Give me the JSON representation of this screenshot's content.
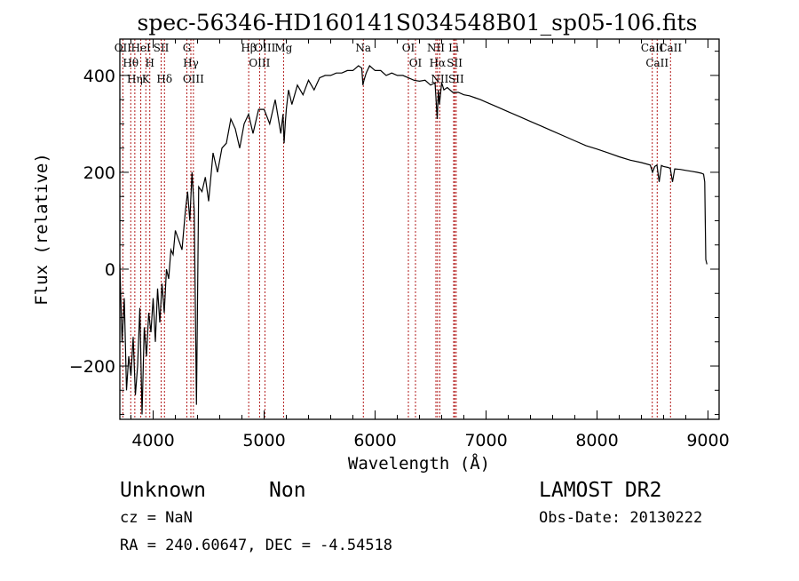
{
  "chart_data": {
    "type": "line",
    "title": "spec-56346-HD160141S034548B01_sp05-106.fits",
    "xlabel": "Wavelength (Å)",
    "ylabel": "Flux (relative)",
    "xlim": [
      3700,
      9100
    ],
    "ylim": [
      -310,
      475
    ],
    "xticks": [
      4000,
      5000,
      6000,
      7000,
      8000,
      9000
    ],
    "yticks": [
      -200,
      0,
      200,
      400
    ],
    "series": [
      {
        "x": [
          3700,
          3720,
          3740,
          3760,
          3780,
          3800,
          3820,
          3840,
          3860,
          3880,
          3900,
          3920,
          3940,
          3960,
          3980,
          4000,
          4020,
          4040,
          4060,
          4080,
          4100,
          4120,
          4140,
          4160,
          4180,
          4200,
          4230,
          4260,
          4290,
          4310,
          4330,
          4350,
          4370,
          4390,
          4410,
          4440,
          4470,
          4500,
          4540,
          4580,
          4620,
          4660,
          4700,
          4740,
          4780,
          4820,
          4860,
          4900,
          4950,
          5000,
          5050,
          5100,
          5150,
          5170,
          5180,
          5190,
          5200,
          5220,
          5250,
          5300,
          5350,
          5400,
          5450,
          5500,
          5550,
          5600,
          5650,
          5700,
          5750,
          5800,
          5850,
          5880,
          5890,
          5900,
          5920,
          5950,
          6000,
          6050,
          6100,
          6150,
          6200,
          6250,
          6300,
          6350,
          6400,
          6450,
          6500,
          6540,
          6560,
          6570,
          6580,
          6600,
          6620,
          6650,
          6700,
          6750,
          6800,
          6850,
          6900,
          6950,
          7000,
          7100,
          7200,
          7300,
          7400,
          7500,
          7600,
          7700,
          7800,
          7900,
          8000,
          8100,
          8200,
          8300,
          8400,
          8480,
          8500,
          8520,
          8540,
          8560,
          8580,
          8600,
          8640,
          8660,
          8680,
          8700,
          8750,
          8800,
          8850,
          8900,
          8940,
          8960,
          8970,
          8975,
          8980,
          8990
        ],
        "y": [
          10,
          -150,
          -60,
          -250,
          -180,
          -220,
          -140,
          -260,
          -200,
          -80,
          -300,
          -120,
          -180,
          -90,
          -130,
          -60,
          -150,
          -40,
          -110,
          -30,
          -90,
          0,
          -20,
          40,
          30,
          80,
          60,
          40,
          120,
          160,
          100,
          200,
          120,
          -280,
          170,
          160,
          190,
          140,
          240,
          200,
          250,
          260,
          310,
          290,
          250,
          300,
          320,
          280,
          330,
          330,
          300,
          350,
          280,
          320,
          260,
          300,
          330,
          370,
          340,
          380,
          360,
          390,
          370,
          395,
          400,
          400,
          405,
          405,
          410,
          410,
          420,
          415,
          380,
          390,
          405,
          420,
          410,
          410,
          400,
          405,
          400,
          400,
          395,
          390,
          388,
          390,
          380,
          385,
          310,
          370,
          340,
          385,
          370,
          375,
          365,
          365,
          360,
          358,
          354,
          350,
          345,
          335,
          325,
          315,
          305,
          295,
          285,
          275,
          265,
          255,
          248,
          240,
          232,
          225,
          220,
          215,
          200,
          212,
          215,
          180,
          214,
          212,
          210,
          208,
          180,
          207,
          206,
          204,
          202,
          200,
          198,
          196,
          180,
          100,
          20,
          10
        ]
      }
    ],
    "line_markers": [
      {
        "wl": 3727,
        "label": "OII"
      },
      {
        "wl": 3798,
        "label": "Hθ"
      },
      {
        "wl": 3835,
        "label": "Hη"
      },
      {
        "wl": 3889,
        "label": "HeI"
      },
      {
        "wl": 3934,
        "label": "K"
      },
      {
        "wl": 3970,
        "label": "H"
      },
      {
        "wl": 4072,
        "label": "SII"
      },
      {
        "wl": 4102,
        "label": "Hδ"
      },
      {
        "wl": 4304,
        "label": "G"
      },
      {
        "wl": 4340,
        "label": "Hγ"
      },
      {
        "wl": 4363,
        "label": "OIII"
      },
      {
        "wl": 4861,
        "label": "Hβ"
      },
      {
        "wl": 4959,
        "label": "OIII"
      },
      {
        "wl": 5007,
        "label": "OIII"
      },
      {
        "wl": 5175,
        "label": "Mg"
      },
      {
        "wl": 5894,
        "label": "Na"
      },
      {
        "wl": 6300,
        "label": "OI"
      },
      {
        "wl": 6364,
        "label": "OI"
      },
      {
        "wl": 6548,
        "label": "NII"
      },
      {
        "wl": 6563,
        "label": "Hα"
      },
      {
        "wl": 6583,
        "label": "NII"
      },
      {
        "wl": 6708,
        "label": "Li"
      },
      {
        "wl": 6717,
        "label": "SII"
      },
      {
        "wl": 6731,
        "label": "SII"
      },
      {
        "wl": 8498,
        "label": "CaII"
      },
      {
        "wl": 8542,
        "label": "CaII"
      },
      {
        "wl": 8662,
        "label": "CaII"
      }
    ],
    "marker_color": "#aa0000",
    "grid": false,
    "legend": "none"
  },
  "info": {
    "class": "Unknown",
    "subclass": "Non",
    "survey": "LAMOST DR2",
    "cz": "cz = NaN",
    "obs_date": "Obs-Date: 20130222",
    "radec": "RA = 240.60647, DEC =  -4.54518"
  }
}
